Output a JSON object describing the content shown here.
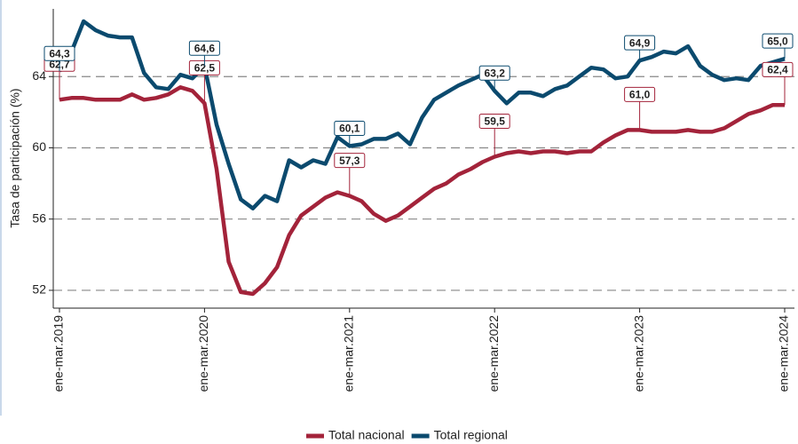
{
  "chart_data": {
    "type": "line",
    "y_label": "Tasa de participación (%)",
    "categories": [
      "ene-mar.2019",
      null,
      null,
      null,
      null,
      null,
      null,
      null,
      null,
      null,
      null,
      null,
      "ene-mar.2020",
      null,
      null,
      null,
      null,
      null,
      null,
      null,
      null,
      null,
      null,
      null,
      "ene-mar.2021",
      null,
      null,
      null,
      null,
      null,
      null,
      null,
      null,
      null,
      null,
      null,
      "ene-mar.2022",
      null,
      null,
      null,
      null,
      null,
      null,
      null,
      null,
      null,
      null,
      null,
      "ene-mar.2023",
      null,
      null,
      null,
      null,
      null,
      null,
      null,
      null,
      null,
      null,
      null,
      "ene-mar.2024"
    ],
    "series": [
      {
        "name": "Total nacional",
        "color": "#a3233a",
        "values": [
          62.7,
          62.8,
          62.8,
          62.7,
          62.7,
          62.7,
          63.0,
          62.7,
          62.8,
          63.0,
          63.4,
          63.2,
          62.5,
          58.8,
          53.6,
          51.9,
          51.8,
          52.4,
          53.3,
          55.1,
          56.2,
          56.7,
          57.2,
          57.5,
          57.3,
          57.0,
          56.3,
          55.9,
          56.2,
          56.7,
          57.2,
          57.7,
          58.0,
          58.5,
          58.8,
          59.2,
          59.5,
          59.7,
          59.8,
          59.7,
          59.8,
          59.8,
          59.7,
          59.8,
          59.8,
          60.3,
          60.7,
          61.0,
          61.0,
          60.9,
          60.9,
          60.9,
          61.0,
          60.9,
          60.9,
          61.1,
          61.5,
          61.9,
          62.1,
          62.4,
          62.4
        ],
        "value_labels": [
          "62,7",
          null,
          null,
          null,
          null,
          null,
          null,
          null,
          null,
          null,
          null,
          null,
          "62,5",
          null,
          null,
          null,
          null,
          null,
          null,
          null,
          null,
          null,
          null,
          null,
          "57,3",
          null,
          null,
          null,
          null,
          null,
          null,
          null,
          null,
          null,
          null,
          null,
          "59,5",
          null,
          null,
          null,
          null,
          null,
          null,
          null,
          null,
          null,
          null,
          null,
          "61,0",
          null,
          null,
          null,
          null,
          null,
          null,
          null,
          null,
          null,
          null,
          null,
          "62,4"
        ]
      },
      {
        "name": "Total regional",
        "color": "#0b4a6e",
        "values": [
          64.3,
          65.4,
          67.1,
          66.6,
          66.3,
          66.2,
          66.2,
          64.2,
          63.4,
          63.3,
          64.1,
          63.9,
          64.6,
          61.3,
          59.1,
          57.1,
          56.6,
          57.3,
          57.0,
          59.3,
          58.9,
          59.3,
          59.1,
          60.6,
          60.1,
          60.2,
          60.5,
          60.5,
          60.8,
          60.2,
          61.7,
          62.7,
          63.1,
          63.5,
          63.8,
          64.1,
          63.2,
          62.5,
          63.1,
          63.1,
          62.9,
          63.3,
          63.5,
          64.0,
          64.5,
          64.4,
          63.9,
          64.0,
          64.9,
          65.1,
          65.4,
          65.3,
          65.7,
          64.6,
          64.1,
          63.8,
          63.9,
          63.8,
          64.6,
          64.8,
          65.0
        ],
        "value_labels": [
          "64,3",
          null,
          null,
          null,
          null,
          null,
          null,
          null,
          null,
          null,
          null,
          null,
          "64,6",
          null,
          null,
          null,
          null,
          null,
          null,
          null,
          null,
          null,
          null,
          null,
          "60,1",
          null,
          null,
          null,
          null,
          null,
          null,
          null,
          null,
          null,
          null,
          null,
          "63,2",
          null,
          null,
          null,
          null,
          null,
          null,
          null,
          null,
          null,
          null,
          null,
          "64,9",
          null,
          null,
          null,
          null,
          null,
          null,
          null,
          null,
          null,
          null,
          null,
          "65,0"
        ]
      }
    ],
    "ylim": [
      51,
      67.8
    ],
    "yticks": [
      52,
      56,
      60,
      64
    ],
    "grid": true,
    "legend": "bottom"
  }
}
